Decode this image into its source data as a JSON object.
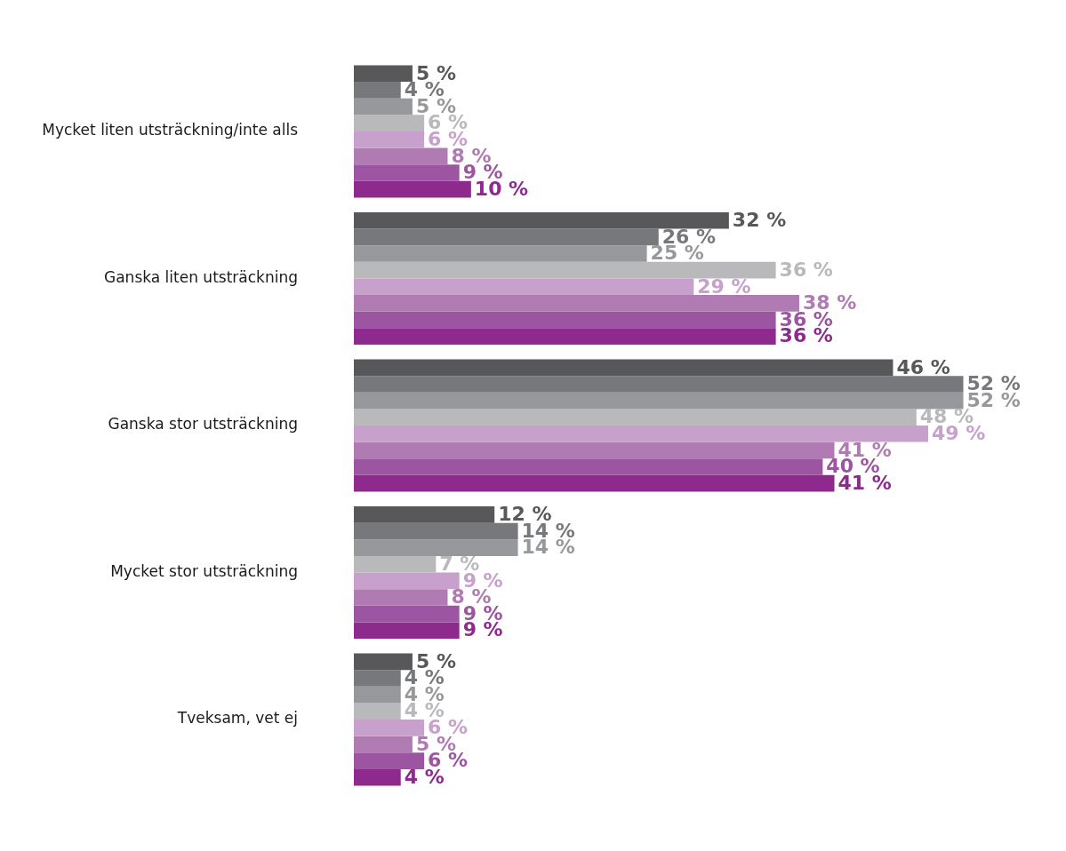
{
  "chart_data": {
    "type": "bar",
    "orientation": "horizontal",
    "categories": [
      "Mycket liten utsträckning/inte alls",
      "Ganska liten utsträckning",
      "Ganska stor utsträckning",
      "Mycket stor utsträckning",
      "Tveksam, vet ej"
    ],
    "series": [
      {
        "color": "#58585a",
        "values": [
          5,
          32,
          46,
          12,
          5
        ],
        "value_labels": [
          "5 %",
          "32 %",
          "46 %",
          "12 %",
          "5 %"
        ]
      },
      {
        "color": "#77787b",
        "values": [
          4,
          26,
          52,
          14,
          4
        ],
        "value_labels": [
          "4 %",
          "26 %",
          "52 %",
          "14 %",
          "4 %"
        ]
      },
      {
        "color": "#97989b",
        "values": [
          5,
          25,
          52,
          14,
          4
        ],
        "value_labels": [
          "5 %",
          "25 %",
          "52 %",
          "14 %",
          "4 %"
        ]
      },
      {
        "color": "#b9b9bb",
        "values": [
          6,
          36,
          48,
          7,
          4
        ],
        "value_labels": [
          "6 %",
          "36 %",
          "48 %",
          "7 %",
          "4 %"
        ]
      },
      {
        "color": "#c8a0cc",
        "values": [
          6,
          29,
          49,
          9,
          6
        ],
        "value_labels": [
          "6 %",
          "29 %",
          "49 %",
          "9 %",
          "6 %"
        ]
      },
      {
        "color": "#b07ab3",
        "values": [
          8,
          38,
          41,
          8,
          5
        ],
        "value_labels": [
          "8 %",
          "38 %",
          "41 %",
          "8 %",
          "5 %"
        ]
      },
      {
        "color": "#9c55a0",
        "values": [
          9,
          36,
          40,
          9,
          6
        ],
        "value_labels": [
          "9 %",
          "36 %",
          "40 %",
          "9 %",
          "6 %"
        ]
      },
      {
        "color": "#8e2a8e",
        "values": [
          10,
          36,
          41,
          9,
          4
        ],
        "value_labels": [
          "10 %",
          "36 %",
          "41 %",
          "9 %",
          "4 %"
        ]
      }
    ],
    "grid": false,
    "legend": false
  }
}
